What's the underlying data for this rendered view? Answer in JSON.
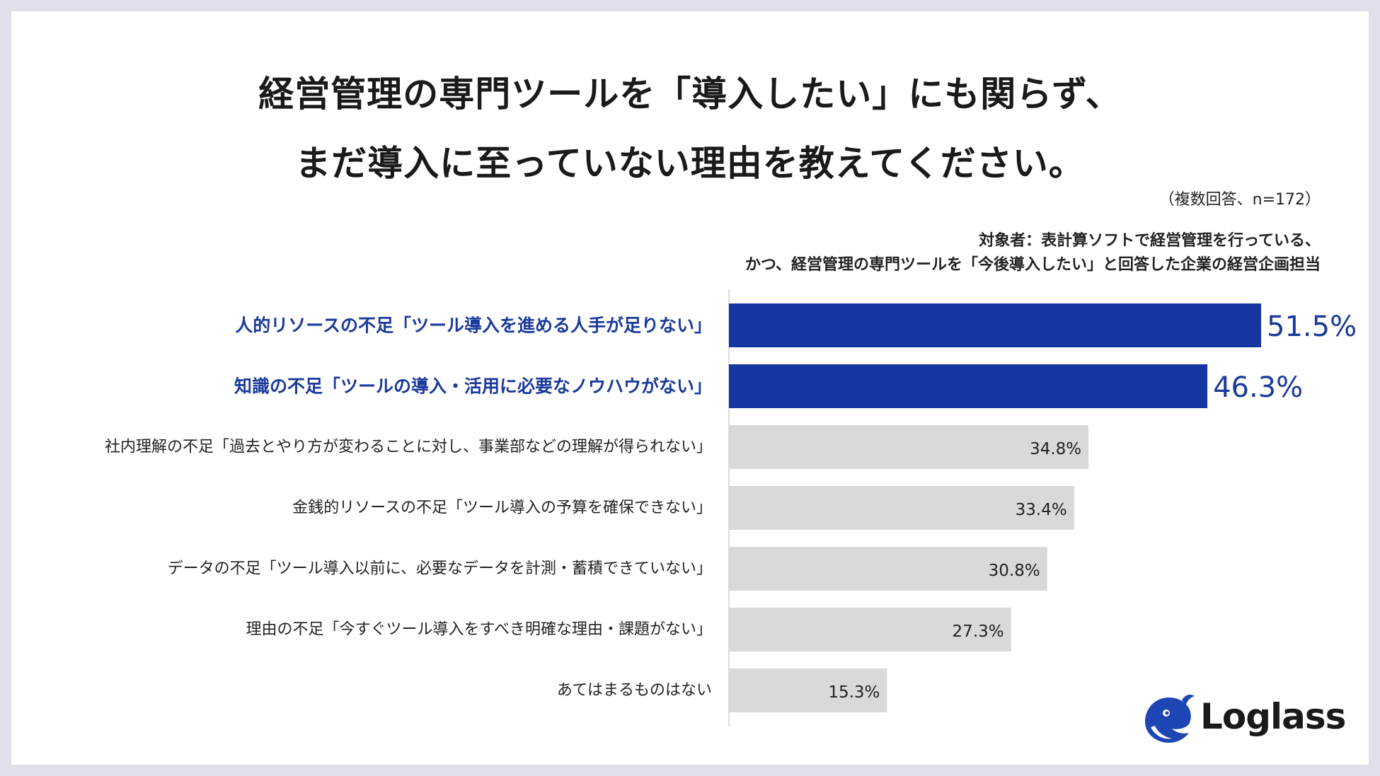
{
  "title_lines": [
    "経営管理の専門ツールを「導入したい」にも関らず、",
    "まだ導入に至っていない理由を教えてください。"
  ],
  "sample_note": "（複数回答、n=172）",
  "target_lines": [
    "対象者：表計算ソフトで経営管理を行っている、",
    "かつ、経営管理の専門ツールを「今後導入したい」と回答した企業の経営企画担当"
  ],
  "logo_text": "Loglass",
  "colors": {
    "highlight_bar": "#1535a0",
    "normal_bar": "#d9d9d9",
    "highlight_text": "#1a3a9c",
    "normal_text": "#222222",
    "axis": "#cfcfcf"
  },
  "chart_data": {
    "type": "bar",
    "orientation": "horizontal",
    "categories": [
      "人的リソースの不足「ツール導入を進める人手が足りない」",
      "知識の不足「ツールの導入・活用に必要なノウハウがない」",
      "社内理解の不足「過去とやり方が変わることに対し、事業部などの理解が得られない」",
      "金銭的リソースの不足「ツール導入の予算を確保できない」",
      "データの不足「ツール導入以前に、必要なデータを計測・蓄積できていない」",
      "理由の不足「今すぐツール導入をすべき明確な理由・課題がない」",
      "あてはまるものはない"
    ],
    "values": [
      51.5,
      46.3,
      34.8,
      33.4,
      30.8,
      27.3,
      15.3
    ],
    "value_labels": [
      "51.5%",
      "46.3%",
      "34.8%",
      "33.4%",
      "30.8%",
      "27.3%",
      "15.3%"
    ],
    "highlighted": [
      true,
      true,
      false,
      false,
      false,
      false,
      false
    ],
    "unit": "%",
    "xlim": [
      0,
      51.5
    ]
  }
}
